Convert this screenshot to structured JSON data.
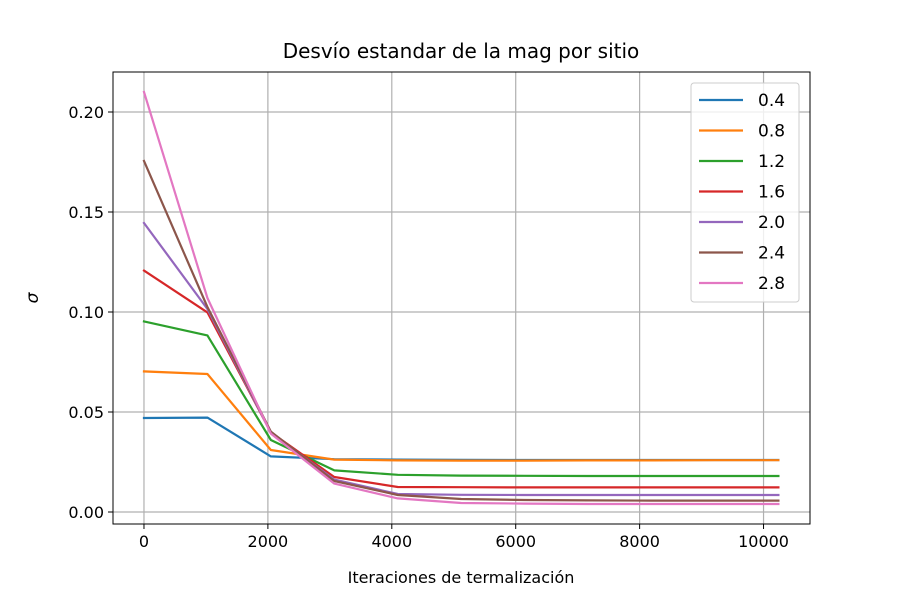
{
  "chart_data": {
    "type": "line",
    "title": "Desvío estandar de la mag por sitio",
    "xlabel": "Iteraciones de termalización",
    "ylabel": "σ",
    "xlim": [
      -500,
      10750
    ],
    "ylim": [
      -0.006,
      0.22
    ],
    "grid": true,
    "legend_position": "upper-right",
    "x_ticks": [
      0,
      2000,
      4000,
      6000,
      8000,
      10000
    ],
    "x_tick_labels": [
      "0",
      "2000",
      "4000",
      "6000",
      "8000",
      "10000"
    ],
    "y_ticks": [
      0.0,
      0.05,
      0.1,
      0.15,
      0.2
    ],
    "y_tick_labels": [
      "0.00",
      "0.05",
      "0.10",
      "0.15",
      "0.20"
    ],
    "x": [
      0,
      1024,
      2048,
      3072,
      4096,
      5120,
      6144,
      7168,
      8192,
      9216,
      10240
    ],
    "series": [
      {
        "name": "0.4",
        "color": "#1f77b4",
        "values": [
          0.047,
          0.0472,
          0.0278,
          0.0264,
          0.0262,
          0.0261,
          0.026,
          0.026,
          0.026,
          0.026,
          0.026
        ]
      },
      {
        "name": "0.8",
        "color": "#ff7f0e",
        "values": [
          0.0703,
          0.069,
          0.031,
          0.0262,
          0.0258,
          0.0257,
          0.0257,
          0.0258,
          0.0258,
          0.0259,
          0.0259
        ]
      },
      {
        "name": "1.2",
        "color": "#2ca02c",
        "values": [
          0.0953,
          0.0883,
          0.036,
          0.0208,
          0.0186,
          0.0182,
          0.0181,
          0.018,
          0.018,
          0.018,
          0.018
        ]
      },
      {
        "name": "1.6",
        "color": "#d62728",
        "values": [
          0.1207,
          0.0998,
          0.0398,
          0.0175,
          0.0125,
          0.0124,
          0.0123,
          0.0123,
          0.0123,
          0.0123,
          0.0123
        ]
      },
      {
        "name": "2.0",
        "color": "#9467bd",
        "values": [
          0.1445,
          0.1015,
          0.0397,
          0.0162,
          0.009,
          0.0086,
          0.0085,
          0.0085,
          0.0085,
          0.0085,
          0.0085
        ]
      },
      {
        "name": "2.4",
        "color": "#8c564b",
        "values": [
          0.1755,
          0.1025,
          0.0402,
          0.0155,
          0.0085,
          0.0065,
          0.006,
          0.0058,
          0.0057,
          0.0057,
          0.0057
        ]
      },
      {
        "name": "2.8",
        "color": "#e377c2",
        "values": [
          0.21,
          0.107,
          0.0392,
          0.0142,
          0.0068,
          0.0045,
          0.0042,
          0.004,
          0.004,
          0.004,
          0.004
        ]
      }
    ]
  }
}
